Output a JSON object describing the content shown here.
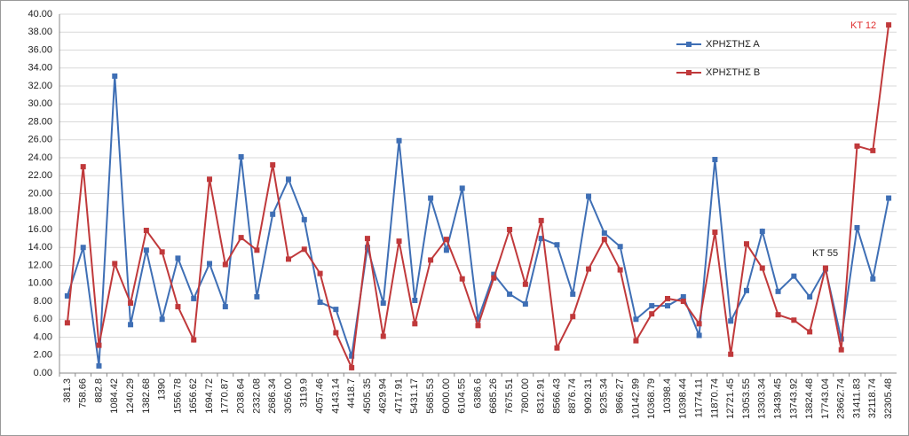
{
  "chart_data": {
    "type": "line",
    "categories": [
      "381.3",
      "758.66",
      "882.8",
      "1084.42",
      "1240.29",
      "1382.68",
      "1390",
      "1556.78",
      "1656.62",
      "1694.72",
      "1770.87",
      "2038.64",
      "2332.08",
      "2686.34",
      "3056.00",
      "3119.9",
      "4057.46",
      "4143.14",
      "4418.7",
      "4505.35",
      "4629.94",
      "4717.91",
      "5431.17",
      "5685.53",
      "6000.00",
      "6104.55",
      "6386.6",
      "6685.26",
      "7675.51",
      "7800.00",
      "8312.91",
      "8566.43",
      "8876.74",
      "9092.31",
      "9235.34",
      "9866.27",
      "10142.99",
      "10368.79",
      "10398.4",
      "10398.44",
      "11774.11",
      "11870.74",
      "12721.45",
      "13053.55",
      "13303.34",
      "13439.45",
      "13743.92",
      "13824.48",
      "17743.04",
      "23662.74",
      "31411.83",
      "32118.74",
      "32305.48"
    ],
    "series": [
      {
        "name": "ΧΡΗΣΤΗΣ Α",
        "color": "#3f6fb5",
        "values": [
          8.6,
          14.0,
          0.8,
          33.1,
          5.4,
          13.7,
          6.0,
          12.8,
          8.3,
          12.2,
          7.4,
          24.1,
          8.5,
          17.7,
          21.6,
          17.1,
          7.9,
          7.1,
          1.9,
          14.0,
          7.8,
          25.9,
          8.1,
          19.5,
          13.7,
          20.6,
          6.0,
          11.0,
          8.8,
          7.7,
          15.0,
          14.3,
          8.8,
          19.7,
          15.6,
          14.1,
          6.0,
          7.5,
          7.5,
          8.5,
          4.2,
          23.8,
          5.8,
          9.2,
          15.8,
          9.1,
          10.8,
          8.5,
          11.6,
          3.8,
          16.2,
          10.5,
          19.5
        ]
      },
      {
        "name": "ΧΡΗΣΤΗΣ Β",
        "color": "#c0393b",
        "values": [
          5.6,
          23.0,
          3.1,
          12.2,
          7.8,
          15.9,
          13.5,
          7.4,
          3.7,
          21.6,
          12.1,
          15.1,
          13.7,
          23.2,
          12.7,
          13.8,
          11.1,
          4.5,
          0.6,
          15.0,
          4.1,
          14.7,
          5.5,
          12.6,
          14.9,
          10.5,
          5.3,
          10.6,
          16.0,
          9.9,
          17.0,
          2.8,
          6.3,
          11.6,
          14.9,
          11.5,
          3.6,
          6.6,
          8.3,
          8.0,
          5.5,
          15.7,
          2.1,
          14.4,
          11.7,
          6.5,
          5.9,
          4.6,
          11.7,
          2.6,
          25.3,
          24.8,
          38.8
        ]
      }
    ],
    "annotations": [
      "KT 12",
      "KT 55"
    ],
    "ylim": [
      0,
      40
    ],
    "yticks": [
      {
        "value": 0,
        "label": "0.00"
      },
      {
        "value": 2,
        "label": "2.00"
      },
      {
        "value": 4,
        "label": "4.00"
      },
      {
        "value": 6,
        "label": "6.00"
      },
      {
        "value": 8,
        "label": "8.00"
      },
      {
        "value": 10,
        "label": "10.00"
      },
      {
        "value": 12,
        "label": "12.00"
      },
      {
        "value": 14,
        "label": "14.00"
      },
      {
        "value": 16,
        "label": "16.00"
      },
      {
        "value": 18,
        "label": "18.00"
      },
      {
        "value": 20,
        "label": "20.00"
      },
      {
        "value": 22,
        "label": "22.00"
      },
      {
        "value": 24,
        "label": "24.00"
      },
      {
        "value": 26,
        "label": "26.00"
      },
      {
        "value": 28,
        "label": "28.00"
      },
      {
        "value": 30,
        "label": "30.00"
      },
      {
        "value": 32,
        "label": "32.00"
      },
      {
        "value": 34,
        "label": "34.00"
      },
      {
        "value": 36,
        "label": "36.00"
      },
      {
        "value": 38,
        "label": "38.00"
      },
      {
        "value": 40,
        "label": "40.00"
      }
    ],
    "grid": true
  }
}
